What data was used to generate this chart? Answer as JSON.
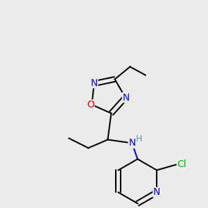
{
  "bg_color": "#ebebeb",
  "bond_color": "#000000",
  "bond_width": 1.5,
  "atom_colors": {
    "N": "#0000ff",
    "O": "#ff0000",
    "Cl": "#00bb00",
    "C": "#000000",
    "H": "#5599aa"
  },
  "font_size": 9,
  "fig_size": [
    3.0,
    3.0
  ],
  "dpi": 100
}
